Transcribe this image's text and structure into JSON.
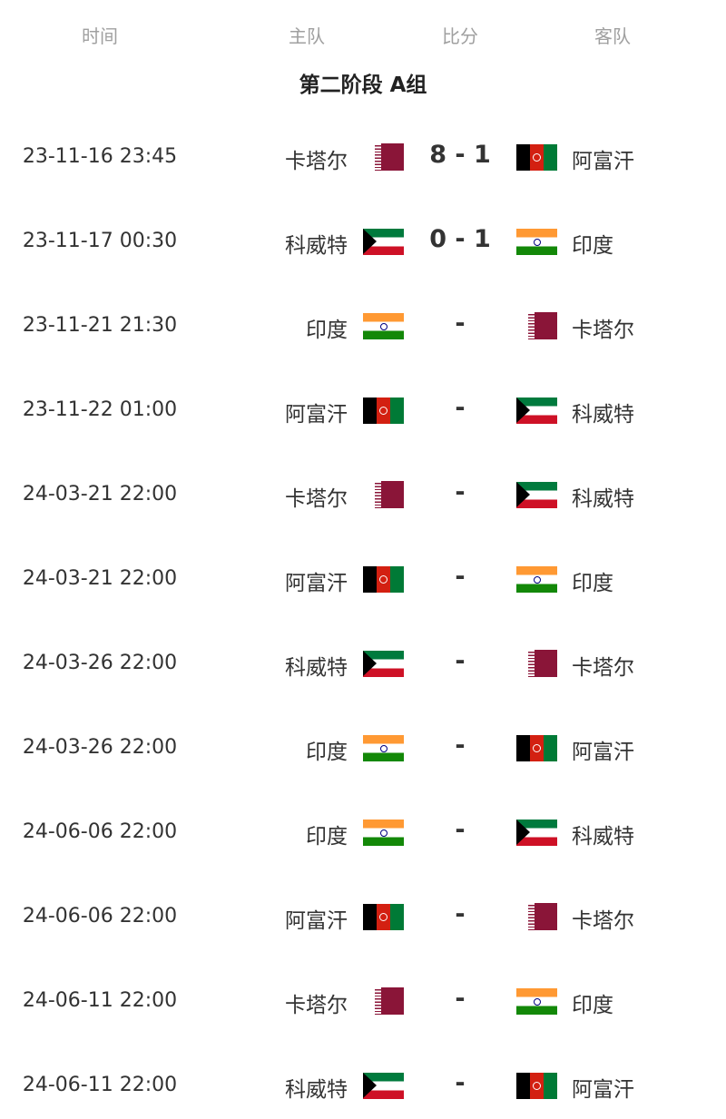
{
  "header": {
    "time": "时间",
    "home": "主队",
    "score": "比分",
    "away": "客队"
  },
  "group_title": "第二阶段 A组",
  "matches": [
    {
      "time": "23-11-16 23:45",
      "home": "卡塔尔",
      "home_flag": "qa",
      "score": "8 - 1",
      "away": "阿富汗",
      "away_flag": "af"
    },
    {
      "time": "23-11-17 00:30",
      "home": "科威特",
      "home_flag": "kw",
      "score": "0 - 1",
      "away": "印度",
      "away_flag": "in"
    },
    {
      "time": "23-11-21 21:30",
      "home": "印度",
      "home_flag": "in",
      "score": "-",
      "away": "卡塔尔",
      "away_flag": "qa"
    },
    {
      "time": "23-11-22 01:00",
      "home": "阿富汗",
      "home_flag": "af",
      "score": "-",
      "away": "科威特",
      "away_flag": "kw"
    },
    {
      "time": "24-03-21 22:00",
      "home": "卡塔尔",
      "home_flag": "qa",
      "score": "-",
      "away": "科威特",
      "away_flag": "kw"
    },
    {
      "time": "24-03-21 22:00",
      "home": "阿富汗",
      "home_flag": "af",
      "score": "-",
      "away": "印度",
      "away_flag": "in"
    },
    {
      "time": "24-03-26 22:00",
      "home": "科威特",
      "home_flag": "kw",
      "score": "-",
      "away": "卡塔尔",
      "away_flag": "qa"
    },
    {
      "time": "24-03-26 22:00",
      "home": "印度",
      "home_flag": "in",
      "score": "-",
      "away": "阿富汗",
      "away_flag": "af"
    },
    {
      "time": "24-06-06 22:00",
      "home": "印度",
      "home_flag": "in",
      "score": "-",
      "away": "科威特",
      "away_flag": "kw"
    },
    {
      "time": "24-06-06 22:00",
      "home": "阿富汗",
      "home_flag": "af",
      "score": "-",
      "away": "卡塔尔",
      "away_flag": "qa"
    },
    {
      "time": "24-06-11 22:00",
      "home": "卡塔尔",
      "home_flag": "qa",
      "score": "-",
      "away": "印度",
      "away_flag": "in"
    },
    {
      "time": "24-06-11 22:00",
      "home": "科威特",
      "home_flag": "kw",
      "score": "-",
      "away": "阿富汗",
      "away_flag": "af"
    }
  ]
}
